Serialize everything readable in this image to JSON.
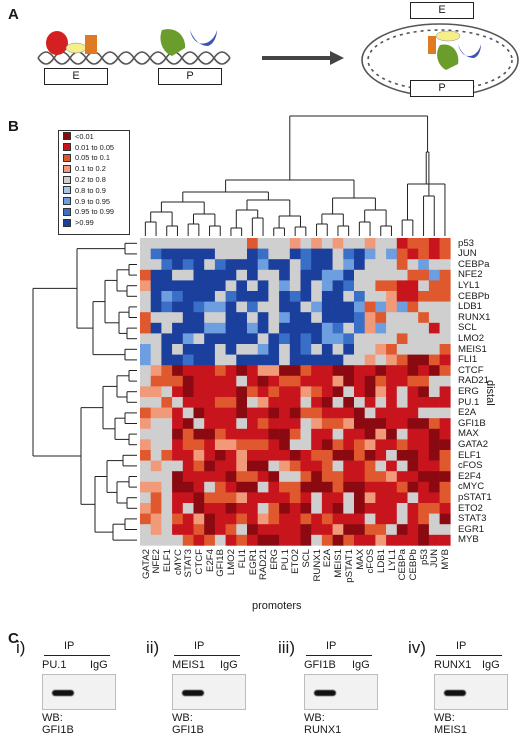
{
  "panel_letters": {
    "a": "A",
    "b": "B",
    "c": "C"
  },
  "panel_a": {
    "enhancer_label": "E",
    "promoter_label": "P"
  },
  "legend": {
    "entries": [
      {
        "label": "<0.01",
        "color": "#8b0a12"
      },
      {
        "label": "0.01 to 0.05",
        "color": "#c8141c"
      },
      {
        "label": "0.05 to 0.1",
        "color": "#e0582d"
      },
      {
        "label": "0.1 to 0.2",
        "color": "#f09a7a"
      },
      {
        "label": "0.2 to 0.8",
        "color": "#cfcfcf"
      },
      {
        "label": "0.8 to 0.9",
        "color": "#a8c4e8"
      },
      {
        "label": "0.9 to 0.95",
        "color": "#6d9fe0"
      },
      {
        "label": "0.95 to 0.99",
        "color": "#3a6fc8"
      },
      {
        "label": ">0.99",
        "color": "#1a3f9c"
      }
    ]
  },
  "heatmap": {
    "rows": [
      "p53",
      "JUN",
      "CEBPa",
      "NFE2",
      "LYL1",
      "CEBPb",
      "LDB1",
      "RUNX1",
      "SCL",
      "LMO2",
      "MEIS1",
      "FLI1",
      "CTCF",
      "RAD21",
      "ERG",
      "PU.1",
      "E2A",
      "GFI1B",
      "MAX",
      "GATA2",
      "ELF1",
      "cFOS",
      "E2F4",
      "cMYC",
      "pSTAT1",
      "ETO2",
      "STAT3",
      "EGR1",
      "MYB"
    ],
    "columns": [
      "GATA2",
      "NFE2",
      "ELF1",
      "cMYC",
      "STAT3",
      "CTCF",
      "E2F4",
      "GFI1B",
      "LMO2",
      "FLI1",
      "EGR1",
      "RAD21",
      "ERG",
      "PU.1",
      "ETO2",
      "SCL",
      "RUNX1",
      "E2A",
      "MEIS1",
      "pSTAT1",
      "MAX",
      "cFOS",
      "LDB1",
      "LYL1",
      "CEBPa",
      "CEBPb",
      "p53",
      "JUN",
      "MYB"
    ],
    "x_title": "promoters",
    "y_title": "distal"
  },
  "panel_c": {
    "blots": [
      {
        "roman": "i)",
        "ip": "IP",
        "lane1": "PU.1",
        "lane2": "IgG",
        "wb": "WB: GFI1B"
      },
      {
        "roman": "ii)",
        "ip": "IP",
        "lane1": "MEIS1",
        "lane2": "IgG",
        "wb": "WB: GFI1B"
      },
      {
        "roman": "iii)",
        "ip": "IP",
        "lane1": "GFI1B",
        "lane2": "IgG",
        "wb": "WB: RUNX1"
      },
      {
        "roman": "iv)",
        "ip": "IP",
        "lane1": "RUNX1",
        "lane2": "IgG",
        "wb": "WB: MEIS1"
      }
    ]
  }
}
